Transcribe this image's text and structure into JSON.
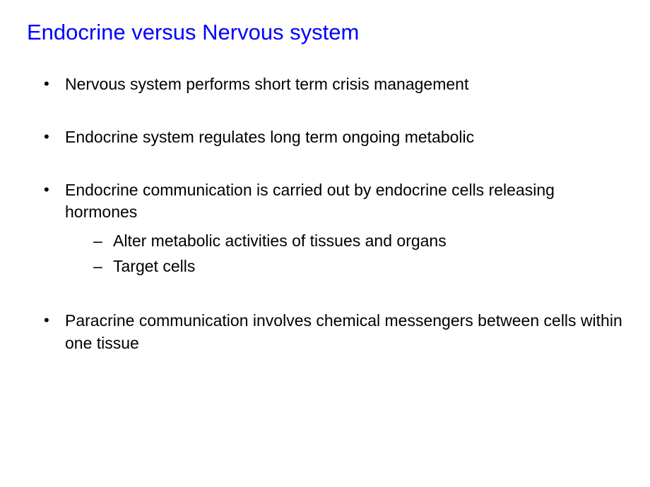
{
  "title": "Endocrine versus Nervous system",
  "title_color": "#0000ff",
  "body_color": "#000000",
  "background_color": "#ffffff",
  "title_fontsize": 31,
  "body_fontsize": 23,
  "bullets": [
    {
      "text": "Nervous system performs short term crisis management",
      "sub": []
    },
    {
      "text": "Endocrine system regulates long term ongoing metabolic",
      "sub": []
    },
    {
      "text": "Endocrine communication is carried out by endocrine cells releasing hormones",
      "sub": [
        "Alter metabolic activities of tissues and organs",
        "Target cells"
      ]
    },
    {
      "text": "Paracrine communication involves chemical messengers between cells within one tissue",
      "sub": []
    }
  ]
}
